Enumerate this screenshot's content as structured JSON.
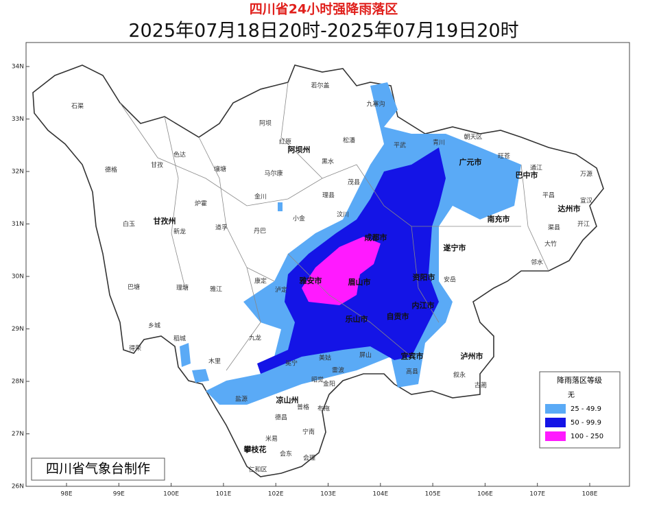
{
  "header": {
    "title": "四川省24小时强降雨落区",
    "subtitle": "2025年07月18日20时-2025年07月19日20时"
  },
  "map": {
    "lat_ticks": [
      {
        "value": 34,
        "label": "34N"
      },
      {
        "value": 33,
        "label": "33N"
      },
      {
        "value": 32,
        "label": "32N"
      },
      {
        "value": 31,
        "label": "31N"
      },
      {
        "value": 30,
        "label": "30N"
      },
      {
        "value": 29,
        "label": "29N"
      },
      {
        "value": 28,
        "label": "28N"
      },
      {
        "value": 27,
        "label": "27N"
      },
      {
        "value": 26,
        "label": "26N"
      }
    ],
    "lon_ticks": [
      {
        "value": 98,
        "label": "98E"
      },
      {
        "value": 99,
        "label": "99E"
      },
      {
        "value": 100,
        "label": "100E"
      },
      {
        "value": 101,
        "label": "101E"
      },
      {
        "value": 102,
        "label": "102E"
      },
      {
        "value": 103,
        "label": "103E"
      },
      {
        "value": 104,
        "label": "104E"
      },
      {
        "value": 105,
        "label": "105E"
      },
      {
        "value": 106,
        "label": "106E"
      },
      {
        "value": 107,
        "label": "107E"
      },
      {
        "value": 108,
        "label": "108E"
      }
    ]
  },
  "places": [
    "石渠",
    "若尔盖",
    "九寨沟",
    "阿坝",
    "红原",
    "松潘",
    "阿坝州",
    "德格",
    "甘孜",
    "色达",
    "壤塘",
    "马尔康",
    "黑水",
    "茂县",
    "平武",
    "青川",
    "朝天区",
    "旺苍",
    "广元市",
    "通江",
    "万源",
    "巴中市",
    "平昌",
    "宣汉",
    "达州市",
    "开江",
    "渠县",
    "大竹",
    "邻水",
    "南充市",
    "白玉",
    "甘孜州",
    "新龙",
    "炉霍",
    "道孚",
    "丹巴",
    "金川",
    "理县",
    "小金",
    "汶川",
    "康定",
    "泸定",
    "巴塘",
    "理塘",
    "雅江",
    "乡城",
    "稻城",
    "九龙",
    "木里",
    "得荣",
    "盐源",
    "冕宁",
    "凉山州",
    "昭觉",
    "美姑",
    "普格",
    "布拖",
    "德昌",
    "宁南",
    "米易",
    "会东",
    "会理",
    "攀枝花",
    "仁和区",
    "雅安市",
    "成都市",
    "眉山市",
    "乐山市",
    "资阳市",
    "内江市",
    "自贡市",
    "宜宾市",
    "泸州市",
    "遂宁市",
    "安岳",
    "古蔺",
    "叙永",
    "高县",
    "屏山",
    "雷波",
    "金阳"
  ],
  "legend": {
    "title": "降雨落区等级",
    "items": [
      {
        "label": "无",
        "color": "#ffffff"
      },
      {
        "label": "25 - 49.9",
        "color": "#5aaaf6"
      },
      {
        "label": "50 - 99.9",
        "color": "#1414e6"
      },
      {
        "label": "100 - 250",
        "color": "#ff1aff"
      }
    ]
  },
  "credit": "四川省气象台制作"
}
